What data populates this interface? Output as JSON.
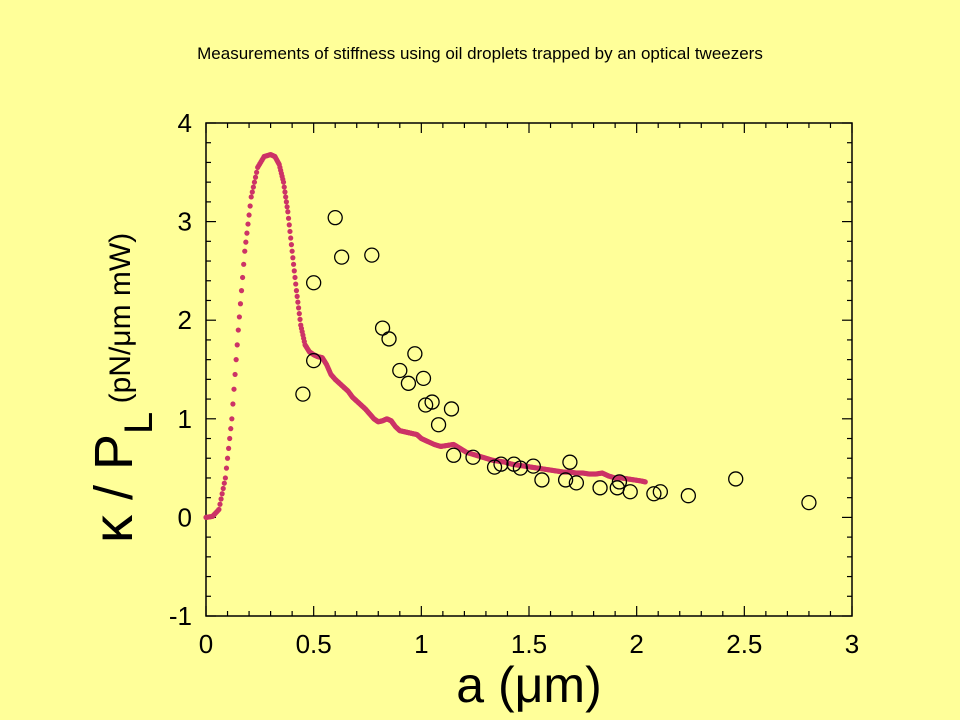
{
  "chart_data": {
    "type": "scatter",
    "title": "Measurements of stiffness using oil droplets trapped by an optical tweezers",
    "xlabel": "a (μm)",
    "ylabel": {
      "kappa": "κ",
      "main": " / P",
      "subscript": "L",
      "units": " (pN/μm mW)"
    },
    "xlim": [
      0,
      3
    ],
    "ylim": [
      -1,
      4
    ],
    "x_ticks": [
      "0",
      "0.5",
      "1",
      "1.5",
      "2",
      "2.5",
      "3"
    ],
    "y_ticks": [
      "-1",
      "0",
      "1",
      "2",
      "3",
      "4"
    ],
    "grid": false,
    "series": [
      {
        "kind": "line",
        "style": "dotted-red",
        "color": "#CC3366",
        "x": [
          0.0,
          0.03,
          0.06,
          0.09,
          0.12,
          0.15,
          0.18,
          0.21,
          0.24,
          0.27,
          0.3,
          0.32,
          0.34,
          0.36,
          0.38,
          0.4,
          0.42,
          0.44,
          0.46,
          0.48,
          0.5,
          0.52,
          0.54,
          0.56,
          0.58,
          0.6,
          0.62,
          0.64,
          0.66,
          0.68,
          0.7,
          0.72,
          0.74,
          0.76,
          0.78,
          0.8,
          0.82,
          0.84,
          0.86,
          0.88,
          0.9,
          0.92,
          0.94,
          0.96,
          0.98,
          1.0,
          1.03,
          1.06,
          1.09,
          1.12,
          1.15,
          1.18,
          1.21,
          1.24,
          1.27,
          1.3,
          1.33,
          1.36,
          1.39,
          1.42,
          1.45,
          1.48,
          1.51,
          1.54,
          1.57,
          1.6,
          1.63,
          1.66,
          1.69,
          1.72,
          1.75,
          1.78,
          1.81,
          1.84,
          1.87,
          1.9,
          1.93,
          1.96,
          1.99,
          2.02,
          2.04
        ],
        "y": [
          0.0,
          0.01,
          0.08,
          0.4,
          1.0,
          1.9,
          2.7,
          3.25,
          3.55,
          3.66,
          3.68,
          3.66,
          3.58,
          3.4,
          3.1,
          2.7,
          2.3,
          1.95,
          1.75,
          1.68,
          1.65,
          1.63,
          1.62,
          1.55,
          1.45,
          1.4,
          1.36,
          1.32,
          1.28,
          1.22,
          1.18,
          1.14,
          1.1,
          1.05,
          1.0,
          0.97,
          0.98,
          1.0,
          0.98,
          0.92,
          0.88,
          0.87,
          0.86,
          0.85,
          0.84,
          0.8,
          0.77,
          0.74,
          0.72,
          0.73,
          0.74,
          0.7,
          0.66,
          0.64,
          0.62,
          0.6,
          0.58,
          0.57,
          0.56,
          0.54,
          0.53,
          0.52,
          0.51,
          0.5,
          0.49,
          0.48,
          0.47,
          0.46,
          0.46,
          0.45,
          0.45,
          0.44,
          0.44,
          0.45,
          0.42,
          0.4,
          0.4,
          0.39,
          0.38,
          0.37,
          0.36
        ]
      },
      {
        "kind": "scatter",
        "marker": "open-circle",
        "color": "#000000",
        "x": [
          0.45,
          0.5,
          0.5,
          0.6,
          0.63,
          0.77,
          0.82,
          0.85,
          0.9,
          0.94,
          0.97,
          1.01,
          1.02,
          1.05,
          1.08,
          1.14,
          1.15,
          1.24,
          1.34,
          1.37,
          1.43,
          1.46,
          1.52,
          1.56,
          1.67,
          1.69,
          1.72,
          1.83,
          1.91,
          1.92,
          1.97,
          2.08,
          2.11,
          2.24,
          2.46,
          2.8
        ],
        "y": [
          1.25,
          2.38,
          1.59,
          3.04,
          2.64,
          2.66,
          1.92,
          1.81,
          1.49,
          1.36,
          1.66,
          1.41,
          1.14,
          1.17,
          0.94,
          1.1,
          0.63,
          0.61,
          0.51,
          0.54,
          0.54,
          0.5,
          0.52,
          0.38,
          0.38,
          0.56,
          0.35,
          0.3,
          0.3,
          0.36,
          0.26,
          0.24,
          0.26,
          0.22,
          0.39,
          0.15
        ]
      }
    ]
  }
}
